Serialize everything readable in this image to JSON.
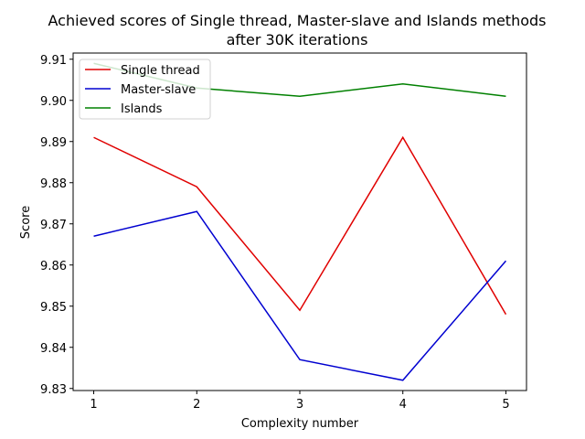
{
  "chart_data": {
    "type": "line",
    "title": [
      "Achieved scores of Single thread, Master-slave and Islands methods",
      "after 30K iterations"
    ],
    "xlabel": "Complexity number",
    "ylabel": "Score",
    "x": [
      1,
      2,
      3,
      4,
      5
    ],
    "x_ticks": [
      "1",
      "2",
      "3",
      "4",
      "5"
    ],
    "y_ticks": [
      "9.83",
      "9.84",
      "9.85",
      "9.86",
      "9.87",
      "9.88",
      "9.89",
      "9.90",
      "9.91"
    ],
    "xlim": [
      0.8,
      5.2
    ],
    "ylim": [
      9.8295,
      9.9115
    ],
    "grid": false,
    "legend_position": "upper-left",
    "series": [
      {
        "name": "Single thread",
        "color": "#e00000",
        "values": [
          9.891,
          9.879,
          9.849,
          9.891,
          9.848
        ]
      },
      {
        "name": "Master-slave",
        "color": "#0000d0",
        "values": [
          9.867,
          9.873,
          9.837,
          9.832,
          9.861
        ]
      },
      {
        "name": "Islands",
        "color": "#008000",
        "values": [
          9.909,
          9.903,
          9.901,
          9.904,
          9.901
        ]
      }
    ]
  }
}
